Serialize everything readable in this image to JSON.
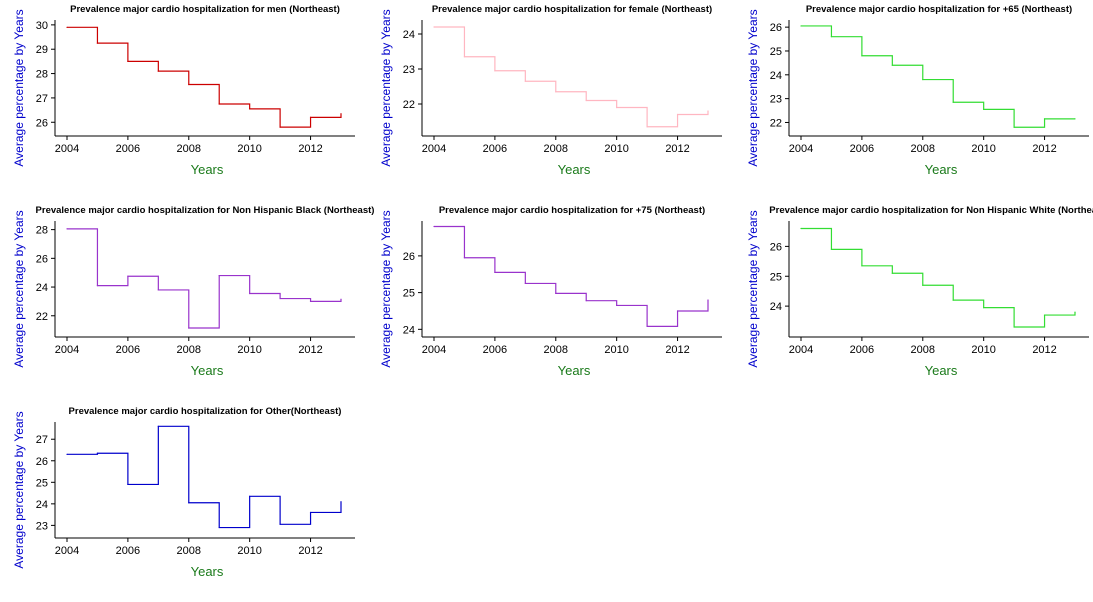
{
  "chart_data": [
    {
      "type": "line",
      "title": "Prevalence major cardio hospitalization for men (Northeast)",
      "xlabel": "Years",
      "ylabel": "Average percentage by Years",
      "xlim": [
        2004,
        2013
      ],
      "ylim": [
        25.6,
        30.2
      ],
      "xticks": [
        2004,
        2006,
        2008,
        2010,
        2012
      ],
      "yticks": [
        26,
        27,
        28,
        29,
        30
      ],
      "color": "#cc0000",
      "x": [
        2004,
        2005,
        2006,
        2007,
        2008,
        2009,
        2010,
        2011,
        2012,
        2013
      ],
      "values": [
        29.9,
        29.25,
        28.5,
        28.1,
        27.55,
        26.75,
        26.55,
        25.8,
        26.2,
        26.35
      ]
    },
    {
      "type": "line",
      "title": "Prevalence major cardio hospitalization for female (Northeast)",
      "xlabel": "Years",
      "ylabel": "Average percentage by Years",
      "xlim": [
        2004,
        2013
      ],
      "ylim": [
        21.2,
        24.4
      ],
      "xticks": [
        2004,
        2006,
        2008,
        2010,
        2012
      ],
      "yticks": [
        22,
        23,
        24
      ],
      "color": "#ffb6c1",
      "x": [
        2004,
        2005,
        2006,
        2007,
        2008,
        2009,
        2010,
        2011,
        2012,
        2013
      ],
      "values": [
        24.2,
        23.35,
        22.95,
        22.65,
        22.35,
        22.1,
        21.9,
        21.35,
        21.7,
        21.8
      ]
    },
    {
      "type": "line",
      "title": "Prevalence major cardio hospitalization for +65 (Northeast)",
      "xlabel": "Years",
      "ylabel": "Average percentage by Years",
      "xlim": [
        2004,
        2013
      ],
      "ylim": [
        21.6,
        26.3
      ],
      "xticks": [
        2004,
        2006,
        2008,
        2010,
        2012
      ],
      "yticks": [
        22,
        23,
        24,
        25,
        26
      ],
      "color": "#33dd33",
      "x": [
        2004,
        2005,
        2006,
        2007,
        2008,
        2009,
        2010,
        2011,
        2012,
        2013
      ],
      "values": [
        26.05,
        25.6,
        24.8,
        24.4,
        23.8,
        22.85,
        22.55,
        21.8,
        22.15,
        22.15
      ]
    },
    {
      "type": "line",
      "title": "Prevalence major cardio hospitalization for Non Hispanic Black (Northeast)",
      "xlabel": "Years",
      "ylabel": "Average percentage by Years",
      "xlim": [
        2004,
        2013
      ],
      "ylim": [
        20.8,
        28.6
      ],
      "xticks": [
        2004,
        2006,
        2008,
        2010,
        2012
      ],
      "yticks": [
        22,
        24,
        26,
        28
      ],
      "color": "#9933cc",
      "x": [
        2004,
        2005,
        2006,
        2007,
        2008,
        2009,
        2010,
        2011,
        2012,
        2013
      ],
      "values": [
        28.05,
        24.1,
        24.75,
        23.8,
        21.15,
        24.8,
        23.55,
        23.2,
        23.0,
        23.15
      ]
    },
    {
      "type": "line",
      "title": "Prevalence major cardio hospitalization for +75 (Northeast)",
      "xlabel": "Years",
      "ylabel": "Average percentage by Years",
      "xlim": [
        2004,
        2013
      ],
      "ylim": [
        23.9,
        26.95
      ],
      "xticks": [
        2004,
        2006,
        2008,
        2010,
        2012
      ],
      "yticks": [
        24,
        25,
        26
      ],
      "color": "#9933cc",
      "x": [
        2004,
        2005,
        2006,
        2007,
        2008,
        2009,
        2010,
        2011,
        2012,
        2013
      ],
      "values": [
        26.8,
        25.95,
        25.55,
        25.25,
        24.98,
        24.78,
        24.65,
        24.08,
        24.5,
        24.8
      ]
    },
    {
      "type": "line",
      "title": "Prevalence major cardio hospitalization for Non Hispanic White (Northeast)",
      "xlabel": "Years",
      "ylabel": "Average percentage by Years",
      "xlim": [
        2004,
        2013
      ],
      "ylim": [
        23.1,
        26.85
      ],
      "xticks": [
        2004,
        2006,
        2008,
        2010,
        2012
      ],
      "yticks": [
        24,
        25,
        26
      ],
      "color": "#33dd33",
      "x": [
        2004,
        2005,
        2006,
        2007,
        2008,
        2009,
        2010,
        2011,
        2012,
        2013
      ],
      "values": [
        26.6,
        25.9,
        25.35,
        25.1,
        24.7,
        24.2,
        23.95,
        23.3,
        23.7,
        23.8
      ]
    },
    {
      "type": "line",
      "title": "Prevalence major cardio hospitalization for Other(Northeast)",
      "xlabel": "Years",
      "ylabel": "Average percentage by Years",
      "xlim": [
        2004,
        2013
      ],
      "ylim": [
        22.6,
        27.8
      ],
      "xticks": [
        2004,
        2006,
        2008,
        2010,
        2012
      ],
      "yticks": [
        23,
        24,
        25,
        26,
        27
      ],
      "color": "#0000cc",
      "x": [
        2004,
        2005,
        2006,
        2007,
        2008,
        2009,
        2010,
        2011,
        2012,
        2013
      ],
      "values": [
        26.3,
        26.35,
        24.9,
        27.6,
        24.05,
        22.9,
        24.35,
        23.05,
        23.6,
        24.1
      ]
    }
  ],
  "styles": {
    "xlabel_color": "#1a7a1a",
    "ylabel_color": "#0000cc",
    "axis_color": "#000000"
  }
}
